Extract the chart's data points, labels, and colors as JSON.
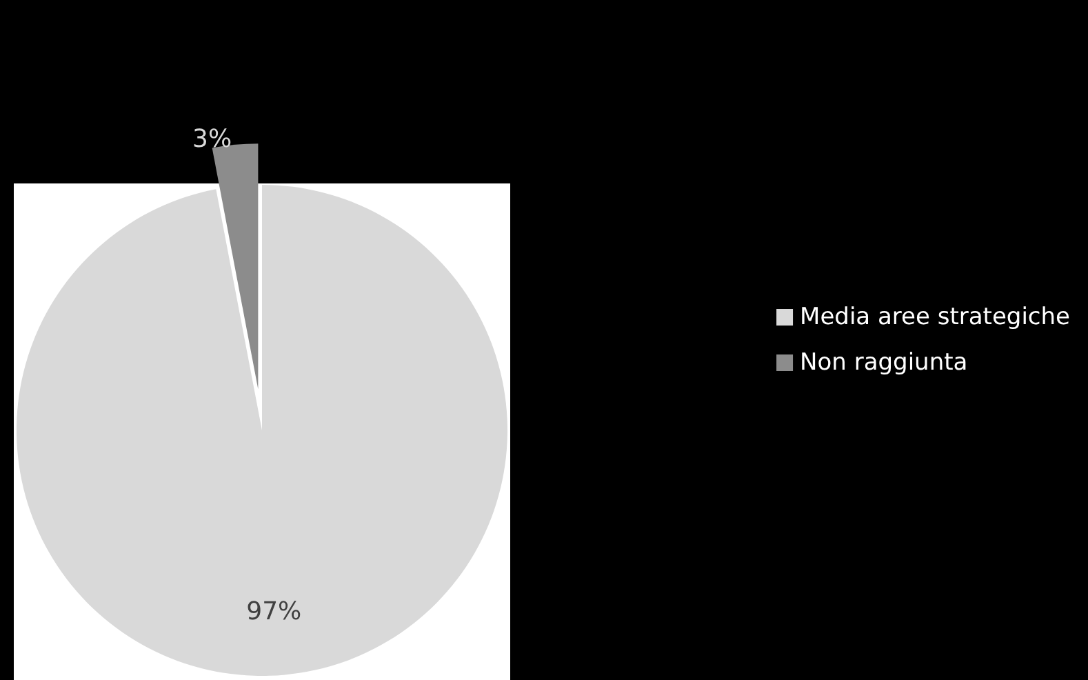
{
  "chart_data": {
    "type": "pie",
    "categories": [
      "Media aree strategiche",
      "Non raggiunta"
    ],
    "values": [
      97,
      3
    ],
    "colors": [
      "#d9d9d9",
      "#8c8c8c"
    ],
    "value_labels": [
      "97%",
      "3%"
    ],
    "legend": "right"
  }
}
